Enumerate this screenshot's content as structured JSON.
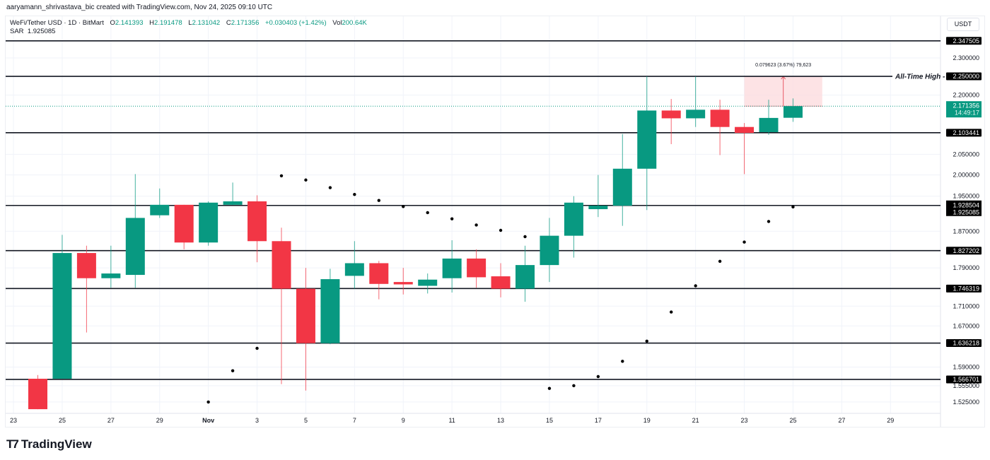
{
  "header": {
    "credit": "aaryamann_shrivastava_bic created with TradingView.com, Nov 24, 2025 09:10 UTC"
  },
  "legend": {
    "symbol": "WeFi/Tether USD · 1D · BitMart",
    "open_label": "O",
    "open": "2.141393",
    "high_label": "H",
    "high": "2.191478",
    "low_label": "L",
    "low": "2.131042",
    "close_label": "C",
    "close": "2.171356",
    "change": "+0.030403 (+1.42%)",
    "vol_label": "Vol",
    "vol": "200.64K",
    "sar_label": "SAR",
    "sar": "1.925085"
  },
  "currency": "USDT",
  "branding": {
    "logo_text": "TradingView"
  },
  "colors": {
    "up": "#089981",
    "down": "#f23645",
    "line": "#131722",
    "grid": "#f0f3fa",
    "range_fill": "#fcdcde",
    "range_line": "#f7a1a9"
  },
  "chart_data": {
    "type": "candlestick",
    "title": "WeFi/Tether USD · 1D · BitMart",
    "scale": "log",
    "ylim": [
      1.5,
      2.37
    ],
    "x_ticks": [
      "23",
      "25",
      "27",
      "29",
      "Nov",
      "3",
      "5",
      "7",
      "9",
      "11",
      "13",
      "15",
      "17",
      "19",
      "21",
      "23",
      "25",
      "27",
      "29"
    ],
    "y_ticks": [
      "2.300000",
      "2.200000",
      "2.050000",
      "2.000000",
      "1.950000",
      "1.870000",
      "1.790000",
      "1.710000",
      "1.670000",
      "1.590000",
      "1.555000",
      "1.525000"
    ],
    "candles": [
      {
        "date": "Oct 24",
        "o": 1.568,
        "h": 1.575,
        "l": 1.512,
        "c": 1.512
      },
      {
        "date": "Oct 25",
        "o": 1.568,
        "h": 1.862,
        "l": 1.568,
        "c": 1.822
      },
      {
        "date": "Oct 26",
        "o": 1.822,
        "h": 1.838,
        "l": 1.657,
        "c": 1.768
      },
      {
        "date": "Oct 27",
        "o": 1.768,
        "h": 1.838,
        "l": 1.748,
        "c": 1.778
      },
      {
        "date": "Oct 28",
        "o": 1.775,
        "h": 2.002,
        "l": 1.748,
        "c": 1.9
      },
      {
        "date": "Oct 29",
        "o": 1.906,
        "h": 1.968,
        "l": 1.9,
        "c": 1.93
      },
      {
        "date": "Oct 30",
        "o": 1.93,
        "h": 1.93,
        "l": 1.83,
        "c": 1.845
      },
      {
        "date": "Oct 31",
        "o": 1.845,
        "h": 1.938,
        "l": 1.838,
        "c": 1.935
      },
      {
        "date": "Nov 1",
        "o": 1.93,
        "h": 1.982,
        "l": 1.93,
        "c": 1.938
      },
      {
        "date": "Nov 2",
        "o": 1.938,
        "h": 1.952,
        "l": 1.802,
        "c": 1.848
      },
      {
        "date": "Nov 3",
        "o": 1.848,
        "h": 1.878,
        "l": 1.558,
        "c": 1.746
      },
      {
        "date": "Nov 4",
        "o": 1.746,
        "h": 1.79,
        "l": 1.546,
        "c": 1.636
      },
      {
        "date": "Nov 5",
        "o": 1.636,
        "h": 1.788,
        "l": 1.634,
        "c": 1.766
      },
      {
        "date": "Nov 6",
        "o": 1.773,
        "h": 1.848,
        "l": 1.746,
        "c": 1.8
      },
      {
        "date": "Nov 7",
        "o": 1.8,
        "h": 1.805,
        "l": 1.724,
        "c": 1.756
      },
      {
        "date": "Nov 8",
        "o": 1.76,
        "h": 1.79,
        "l": 1.734,
        "c": 1.755
      },
      {
        "date": "Nov 9",
        "o": 1.752,
        "h": 1.778,
        "l": 1.736,
        "c": 1.765
      },
      {
        "date": "Nov 10",
        "o": 1.768,
        "h": 1.85,
        "l": 1.738,
        "c": 1.81
      },
      {
        "date": "Nov 11",
        "o": 1.81,
        "h": 1.83,
        "l": 1.748,
        "c": 1.77
      },
      {
        "date": "Nov 12",
        "o": 1.772,
        "h": 1.8,
        "l": 1.728,
        "c": 1.746
      },
      {
        "date": "Nov 13",
        "o": 1.746,
        "h": 1.838,
        "l": 1.719,
        "c": 1.796
      },
      {
        "date": "Nov 14",
        "o": 1.796,
        "h": 1.9,
        "l": 1.76,
        "c": 1.86
      },
      {
        "date": "Nov 15",
        "o": 1.86,
        "h": 1.95,
        "l": 1.812,
        "c": 1.935
      },
      {
        "date": "Nov 16",
        "o": 1.92,
        "h": 2.0,
        "l": 1.902,
        "c": 1.928
      },
      {
        "date": "Nov 17",
        "o": 1.928,
        "h": 2.1,
        "l": 1.882,
        "c": 2.015
      },
      {
        "date": "Nov 18",
        "o": 2.015,
        "h": 2.25,
        "l": 1.918,
        "c": 2.16
      },
      {
        "date": "Nov 19",
        "o": 2.16,
        "h": 2.19,
        "l": 2.075,
        "c": 2.14
      },
      {
        "date": "Nov 20",
        "o": 2.14,
        "h": 2.25,
        "l": 2.118,
        "c": 2.162
      },
      {
        "date": "Nov 21",
        "o": 2.162,
        "h": 2.188,
        "l": 2.048,
        "c": 2.118
      },
      {
        "date": "Nov 22",
        "o": 2.118,
        "h": 2.128,
        "l": 2.002,
        "c": 2.103
      },
      {
        "date": "Nov 23",
        "o": 2.105,
        "h": 2.188,
        "l": 2.098,
        "c": 2.141
      },
      {
        "date": "Nov 24",
        "o": 2.141393,
        "h": 2.191478,
        "l": 2.131042,
        "c": 2.171356
      }
    ],
    "sar": [
      {
        "date": "Oct 31",
        "v": 1.525
      },
      {
        "date": "Nov 1",
        "v": 1.583
      },
      {
        "date": "Nov 2",
        "v": 1.626
      },
      {
        "date": "Nov 3",
        "v": 1.998
      },
      {
        "date": "Nov 4",
        "v": 1.988
      },
      {
        "date": "Nov 5",
        "v": 1.97
      },
      {
        "date": "Nov 6",
        "v": 1.954
      },
      {
        "date": "Nov 7",
        "v": 1.94
      },
      {
        "date": "Nov 8",
        "v": 1.926
      },
      {
        "date": "Nov 9",
        "v": 1.912
      },
      {
        "date": "Nov 10",
        "v": 1.898
      },
      {
        "date": "Nov 11",
        "v": 1.884
      },
      {
        "date": "Nov 12",
        "v": 1.872
      },
      {
        "date": "Nov 13",
        "v": 1.858
      },
      {
        "date": "Nov 14",
        "v": 1.55
      },
      {
        "date": "Nov 15",
        "v": 1.555
      },
      {
        "date": "Nov 16",
        "v": 1.572
      },
      {
        "date": "Nov 17",
        "v": 1.601
      },
      {
        "date": "Nov 18",
        "v": 1.64
      },
      {
        "date": "Nov 19",
        "v": 1.698
      },
      {
        "date": "Nov 20",
        "v": 1.752
      },
      {
        "date": "Nov 21",
        "v": 1.804
      },
      {
        "date": "Nov 22",
        "v": 1.846
      },
      {
        "date": "Nov 23",
        "v": 1.892
      },
      {
        "date": "Nov 24",
        "v": 1.925085
      }
    ],
    "horizontal_levels": [
      {
        "value": 2.347505,
        "label": "2.347505"
      },
      {
        "value": 2.25,
        "label": "2.250000",
        "annotation": "All-Time High"
      },
      {
        "value": 2.103441,
        "label": "2.103441"
      },
      {
        "value": 1.928504,
        "label": "1.928504"
      },
      {
        "value": 1.827202,
        "label": "1.827202"
      },
      {
        "value": 1.746319,
        "label": "1.746319"
      },
      {
        "value": 1.636218,
        "label": "1.636218"
      },
      {
        "value": 1.566701,
        "label": "1.566701"
      }
    ],
    "sar_label": "1.925085",
    "current_price": {
      "value": "2.171356",
      "countdown": "14:49:17"
    },
    "measure": {
      "from": 2.171356,
      "to": 2.25,
      "text": "0.079623 (3.67%) 79,623"
    }
  }
}
